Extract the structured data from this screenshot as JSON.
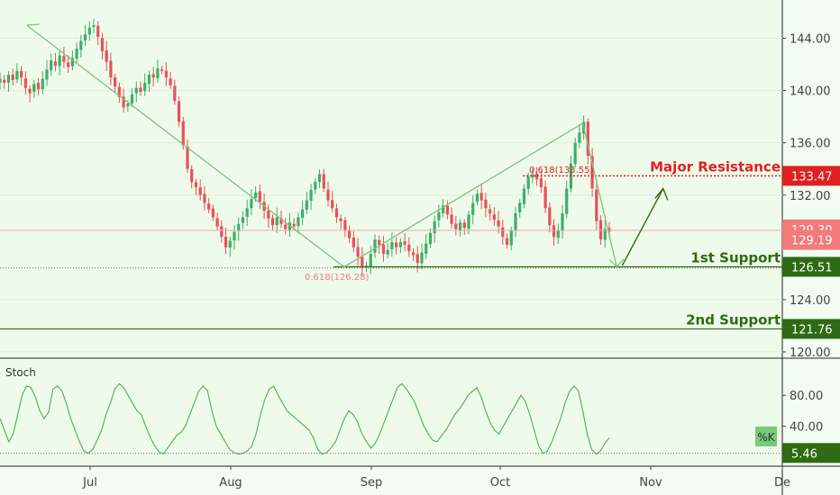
{
  "chart_data": [
    {
      "type": "candlestick",
      "ylim": [
        120.0,
        146.0
      ],
      "xlabels": [
        "Jul",
        "Aug",
        "Sep",
        "Oct",
        "Nov",
        "De"
      ],
      "yticks": [
        {
          "value": 144.0,
          "label": "144.00"
        },
        {
          "value": 140.0,
          "label": "140.00"
        },
        {
          "value": 136.0,
          "label": "136.00"
        },
        {
          "value": 132.0,
          "label": "132.00"
        },
        {
          "value": 124.0,
          "label": "124.00"
        },
        {
          "value": 120.0,
          "label": "120.00"
        }
      ],
      "price_badges": [
        {
          "value": 129.3,
          "label": "129.30",
          "color": "#f27a7a",
          "text_color": "#ffffff"
        },
        {
          "value": 129.19,
          "label": "129.19",
          "color": "#f27a7a",
          "text_color": "#ffffff"
        }
      ],
      "levels": [
        {
          "name": "Major Resistance",
          "value": 133.47,
          "label": "133.47",
          "color": "#e02020",
          "style": "dotted"
        },
        {
          "name": "1st Support",
          "value": 126.51,
          "label": "126.51",
          "color": "#2f6b14",
          "style": "solid"
        },
        {
          "name": "2nd Support",
          "value": 121.76,
          "label": "121.76",
          "color": "#2f6b14",
          "style": "solid"
        }
      ],
      "fib_labels": [
        {
          "text": "0.618(126.28)",
          "value": 126.28,
          "color": "#f07c7c"
        },
        {
          "text": "0.618(133.55)",
          "value": 133.55,
          "color": "#e02020"
        }
      ],
      "candles": [
        140.9,
        140.6,
        141.2,
        140.8,
        141.5,
        141.0,
        140.2,
        139.8,
        140.5,
        140.1,
        140.9,
        141.6,
        142.3,
        141.9,
        142.7,
        142.2,
        141.8,
        142.5,
        143.2,
        143.8,
        144.3,
        144.8,
        145.0,
        144.1,
        143.0,
        142.2,
        141.0,
        140.3,
        139.5,
        138.7,
        139.0,
        139.7,
        140.2,
        139.9,
        140.6,
        141.2,
        141.0,
        141.7,
        141.5,
        141.0,
        140.4,
        139.2,
        137.6,
        135.8,
        134.0,
        133.0,
        132.6,
        132.0,
        131.4,
        130.9,
        130.3,
        129.6,
        128.8,
        128.0,
        128.5,
        129.2,
        129.8,
        130.3,
        131.0,
        131.7,
        132.2,
        131.5,
        130.8,
        130.2,
        129.7,
        130.3,
        129.8,
        129.4,
        129.9,
        129.6,
        130.3,
        130.9,
        131.6,
        132.4,
        133.0,
        133.6,
        132.5,
        131.6,
        131.0,
        130.3,
        130.0,
        129.3,
        128.7,
        128.0,
        127.3,
        126.5,
        126.6,
        127.5,
        128.6,
        128.2,
        127.5,
        127.8,
        128.4,
        128.0,
        128.4,
        128.2,
        127.7,
        127.4,
        126.8,
        127.6,
        128.3,
        129.1,
        130.0,
        130.7,
        131.2,
        130.5,
        129.8,
        129.4,
        129.9,
        129.5,
        130.5,
        131.4,
        132.1,
        131.6,
        131.0,
        130.6,
        130.1,
        129.6,
        128.8,
        128.2,
        129.3,
        130.6,
        131.4,
        132.5,
        133.4,
        133.6,
        133.2,
        132.6,
        131.0,
        129.7,
        128.8,
        129.3,
        130.6,
        132.5,
        134.4,
        136.0,
        136.8,
        137.6,
        135.0,
        132.5,
        130.0,
        128.6,
        129.4,
        129.2
      ],
      "candle_x_range": [
        0,
        676
      ],
      "wave_arrow": [
        {
          "date": "Jun 17",
          "value": 145.0
        },
        {
          "date": "Aug 26",
          "value": 126.5
        },
        {
          "date": "Oct 18",
          "value": 137.5
        },
        {
          "date": "Oct 25",
          "value": 126.5
        }
      ],
      "projection_arrow": [
        {
          "date": "Oct 25",
          "value": 126.6
        },
        {
          "date": "Oct 29",
          "value": 132.5
        }
      ]
    },
    {
      "type": "line",
      "title": "Stoch",
      "ylim": [
        0,
        100
      ],
      "yticks": [
        {
          "value": 80.0,
          "label": "80.00"
        },
        {
          "value": 40.0,
          "label": "40.00"
        }
      ],
      "current": {
        "value": 5.46,
        "label": "5.46"
      },
      "series": [
        {
          "name": "%K",
          "color": "#4caf50",
          "values": [
            50,
            35,
            20,
            30,
            55,
            80,
            92,
            90,
            78,
            60,
            50,
            58,
            88,
            92,
            86,
            70,
            50,
            35,
            20,
            8,
            5,
            10,
            22,
            35,
            55,
            70,
            88,
            95,
            90,
            80,
            70,
            60,
            55,
            40,
            26,
            15,
            7,
            4,
            12,
            20,
            28,
            32,
            40,
            55,
            70,
            85,
            92,
            86,
            60,
            40,
            30,
            20,
            10,
            6,
            4,
            5,
            8,
            14,
            30,
            55,
            75,
            88,
            92,
            80,
            70,
            60,
            55,
            50,
            45,
            40,
            35,
            25,
            10,
            4,
            6,
            12,
            20,
            35,
            50,
            60,
            55,
            45,
            30,
            20,
            12,
            18,
            30,
            45,
            60,
            75,
            90,
            95,
            88,
            80,
            70,
            55,
            40,
            30,
            22,
            20,
            28,
            35,
            45,
            55,
            62,
            70,
            80,
            85,
            90,
            78,
            60,
            45,
            35,
            30,
            40,
            50,
            60,
            70,
            80,
            72,
            55,
            35,
            15,
            5,
            8,
            20,
            35,
            50,
            70,
            85,
            92,
            86,
            60,
            30,
            10,
            4,
            8,
            18,
            25
          ]
        }
      ]
    }
  ]
}
